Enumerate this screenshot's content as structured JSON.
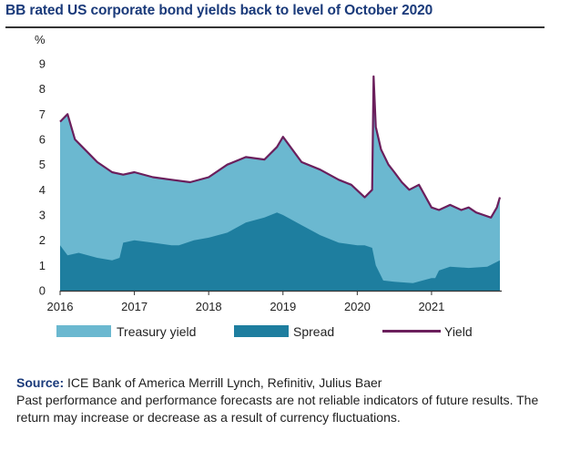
{
  "title": "BB rated US corporate bond yields back to level of October 2020",
  "source": {
    "label": "Source:",
    "text": " ICE Bank of America Merrill Lynch, Refinitiv, Julius Baer",
    "disclaimer": "Past performance and performance forecasts are not reliable indicators of future results. The return may increase or decrease as a result of currency fluctuations."
  },
  "colors": {
    "treasury": "#6bb8d0",
    "spread": "#1e7e9f",
    "yield": "#6b1f5c",
    "title": "#1a3a7a"
  },
  "chart_data": {
    "type": "area",
    "title": "",
    "xlabel": "",
    "ylabel": "%",
    "xlim": [
      2016.0,
      2021.92
    ],
    "ylim": [
      0,
      9
    ],
    "y_ticks": [
      "0",
      "1",
      "2",
      "3",
      "4",
      "5",
      "6",
      "7",
      "8",
      "9"
    ],
    "x_ticks": [
      "2016",
      "2017",
      "2018",
      "2019",
      "2020",
      "2021"
    ],
    "grid": false,
    "legend": "bottom",
    "series": [
      {
        "name": "Treasury yield",
        "kind": "stacked-area-top",
        "x": [
          2016.0,
          2016.1,
          2016.2,
          2016.3,
          2016.5,
          2016.7,
          2016.85,
          2017.0,
          2017.25,
          2017.5,
          2017.75,
          2018.0,
          2018.25,
          2018.5,
          2018.75,
          2018.92,
          2019.0,
          2019.25,
          2019.5,
          2019.75,
          2019.92,
          2020.1,
          2020.2,
          2020.22,
          2020.25,
          2020.32,
          2020.42,
          2020.5,
          2020.6,
          2020.7,
          2020.83,
          2021.0,
          2021.1,
          2021.25,
          2021.4,
          2021.5,
          2021.6,
          2021.7,
          2021.8,
          2021.88,
          2021.92
        ],
        "values": [
          6.7,
          7.0,
          6.0,
          5.7,
          5.1,
          4.7,
          4.6,
          4.7,
          4.5,
          4.4,
          4.3,
          4.5,
          5.0,
          5.3,
          5.2,
          5.7,
          6.1,
          5.1,
          4.8,
          4.4,
          4.2,
          3.7,
          4.0,
          8.5,
          6.5,
          5.6,
          5.0,
          4.7,
          4.3,
          4.0,
          4.2,
          3.3,
          3.2,
          3.4,
          3.2,
          3.3,
          3.1,
          3.0,
          2.9,
          3.3,
          3.7
        ]
      },
      {
        "name": "Spread",
        "kind": "area",
        "x": [
          2016.0,
          2016.1,
          2016.25,
          2016.5,
          2016.7,
          2016.8,
          2016.85,
          2017.0,
          2017.25,
          2017.5,
          2017.6,
          2017.8,
          2018.0,
          2018.25,
          2018.5,
          2018.75,
          2018.92,
          2019.0,
          2019.25,
          2019.5,
          2019.75,
          2020.0,
          2020.1,
          2020.2,
          2020.25,
          2020.35,
          2020.5,
          2020.75,
          2021.0,
          2021.05,
          2021.1,
          2021.25,
          2021.5,
          2021.75,
          2021.85,
          2021.92
        ],
        "values": [
          1.8,
          1.4,
          1.5,
          1.3,
          1.2,
          1.3,
          1.9,
          2.0,
          1.9,
          1.8,
          1.8,
          2.0,
          2.1,
          2.3,
          2.7,
          2.9,
          3.1,
          3.0,
          2.6,
          2.2,
          1.9,
          1.8,
          1.8,
          1.7,
          1.0,
          0.4,
          0.35,
          0.3,
          0.5,
          0.5,
          0.8,
          0.95,
          0.9,
          0.95,
          1.1,
          1.2
        ]
      },
      {
        "name": "Yield",
        "kind": "line",
        "x": [
          2016.0,
          2016.1,
          2016.2,
          2016.3,
          2016.5,
          2016.7,
          2016.85,
          2017.0,
          2017.25,
          2017.5,
          2017.75,
          2018.0,
          2018.25,
          2018.5,
          2018.75,
          2018.92,
          2019.0,
          2019.25,
          2019.5,
          2019.75,
          2019.92,
          2020.1,
          2020.2,
          2020.22,
          2020.25,
          2020.32,
          2020.42,
          2020.5,
          2020.6,
          2020.7,
          2020.83,
          2021.0,
          2021.1,
          2021.25,
          2021.4,
          2021.5,
          2021.6,
          2021.7,
          2021.8,
          2021.88,
          2021.92
        ],
        "values": [
          6.7,
          7.0,
          6.0,
          5.7,
          5.1,
          4.7,
          4.6,
          4.7,
          4.5,
          4.4,
          4.3,
          4.5,
          5.0,
          5.3,
          5.2,
          5.7,
          6.1,
          5.1,
          4.8,
          4.4,
          4.2,
          3.7,
          4.0,
          8.5,
          6.5,
          5.6,
          5.0,
          4.7,
          4.3,
          4.0,
          4.2,
          3.3,
          3.2,
          3.4,
          3.2,
          3.3,
          3.1,
          3.0,
          2.9,
          3.3,
          3.7
        ]
      }
    ]
  }
}
